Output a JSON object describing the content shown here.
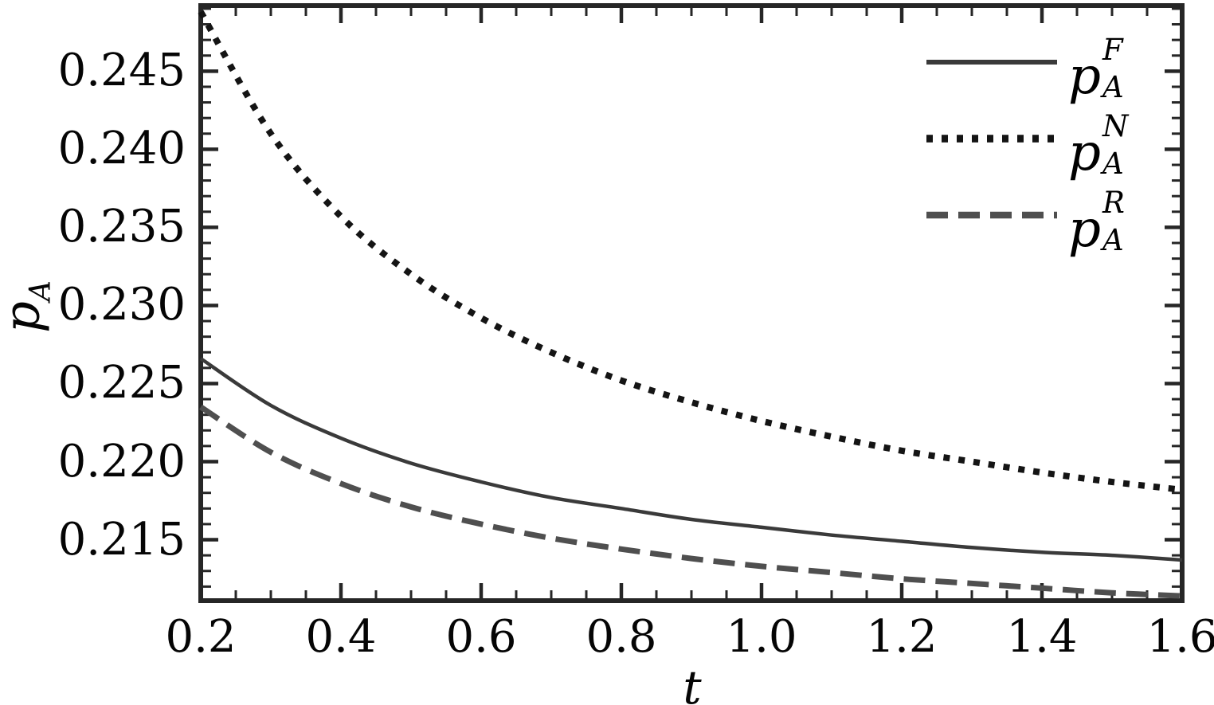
{
  "chart_data": {
    "type": "line",
    "title": "",
    "xlabel": "t",
    "ylabel_main": "p",
    "ylabel_sub": "A",
    "xlim": [
      0.2,
      1.6
    ],
    "ylim": [
      0.2111,
      0.2492
    ],
    "grid": false,
    "legend_position": "top-right",
    "frame": true,
    "tick_style": "inward, minor and major, all four sides",
    "x_minor_step": 0.05,
    "y_minor_step": 0.001,
    "x_tick_values": [
      0.2,
      0.4,
      0.6,
      0.8,
      1.0,
      1.2,
      1.4,
      1.6
    ],
    "x_tick_labels": [
      "0.2",
      "0.4",
      "0.6",
      "0.8",
      "1.0",
      "1.2",
      "1.4",
      "1.6"
    ],
    "y_tick_values": [
      0.245,
      0.24,
      0.235,
      0.23,
      0.225,
      0.22,
      0.215
    ],
    "y_tick_labels": [
      "0.245",
      "0.240",
      "0.235",
      "0.230",
      "0.225",
      "0.220",
      "0.215"
    ],
    "x": [
      0.2,
      0.3,
      0.4,
      0.5,
      0.6,
      0.7,
      0.8,
      0.9,
      1.0,
      1.1,
      1.2,
      1.3,
      1.4,
      1.5,
      1.6
    ],
    "series": [
      {
        "name": "p_A^F",
        "label_main": "p",
        "label_sup": "F",
        "label_sub": "A",
        "style": "solid",
        "color": "#3a3a3a",
        "values": [
          0.2266,
          0.2236,
          0.2215,
          0.2199,
          0.2187,
          0.2177,
          0.217,
          0.2163,
          0.2158,
          0.2153,
          0.2149,
          0.2145,
          0.2142,
          0.214,
          0.2137
        ]
      },
      {
        "name": "p_A^N",
        "label_main": "p",
        "label_sup": "N",
        "label_sub": "A",
        "style": "dotted",
        "color": "#141414",
        "values": [
          0.2488,
          0.241,
          0.2357,
          0.232,
          0.2292,
          0.227,
          0.2252,
          0.2238,
          0.2226,
          0.2216,
          0.2207,
          0.22,
          0.2193,
          0.2187,
          0.2182
        ]
      },
      {
        "name": "p_A^R",
        "label_main": "p",
        "label_sup": "R",
        "label_sub": "A",
        "style": "dashed",
        "color": "#4f4f4f",
        "values": [
          0.2235,
          0.2206,
          0.2186,
          0.2171,
          0.216,
          0.2151,
          0.2144,
          0.2138,
          0.2133,
          0.2129,
          0.2125,
          0.2122,
          0.2119,
          0.2116,
          0.2114
        ]
      }
    ],
    "frame_color": "#262626"
  }
}
